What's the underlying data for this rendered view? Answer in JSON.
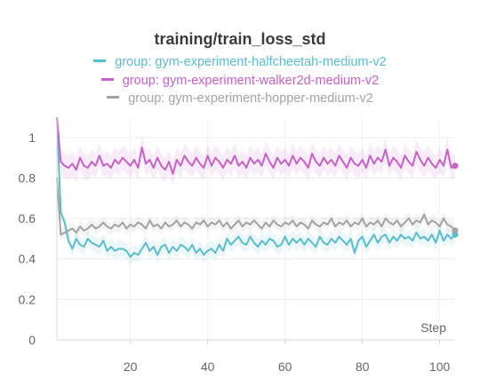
{
  "chart_data": {
    "type": "line",
    "title": "training/train_loss_std",
    "xlabel": "Step",
    "ylabel": "",
    "xlim": [
      1,
      104
    ],
    "ylim": [
      0,
      1.1
    ],
    "xticks": [
      20,
      40,
      60,
      80,
      100
    ],
    "yticks": [
      0,
      0.2,
      0.4,
      0.6,
      0.8,
      1
    ],
    "grid": true,
    "legend_position": "top",
    "series": [
      {
        "name": "group: gym-experiment-halfcheetah-medium-v2",
        "color": "#5bbccc",
        "band_width": 0.04,
        "x": [
          1,
          2,
          3,
          4,
          5,
          6,
          7,
          8,
          9,
          10,
          11,
          12,
          13,
          14,
          15,
          16,
          17,
          18,
          19,
          20,
          21,
          22,
          23,
          24,
          25,
          26,
          27,
          28,
          29,
          30,
          31,
          32,
          33,
          34,
          35,
          36,
          37,
          38,
          39,
          40,
          41,
          42,
          43,
          44,
          45,
          46,
          47,
          48,
          49,
          50,
          51,
          52,
          53,
          54,
          55,
          56,
          57,
          58,
          59,
          60,
          61,
          62,
          63,
          64,
          65,
          66,
          67,
          68,
          69,
          70,
          71,
          72,
          73,
          74,
          75,
          76,
          77,
          78,
          79,
          80,
          81,
          82,
          83,
          84,
          85,
          86,
          87,
          88,
          89,
          90,
          91,
          92,
          93,
          94,
          95,
          96,
          97,
          98,
          99,
          100,
          101,
          102,
          103,
          104
        ],
        "values": [
          1.1,
          0.63,
          0.58,
          0.49,
          0.45,
          0.5,
          0.47,
          0.46,
          0.5,
          0.48,
          0.47,
          0.46,
          0.49,
          0.44,
          0.46,
          0.44,
          0.45,
          0.45,
          0.44,
          0.41,
          0.43,
          0.42,
          0.45,
          0.48,
          0.44,
          0.46,
          0.42,
          0.46,
          0.47,
          0.43,
          0.46,
          0.44,
          0.47,
          0.46,
          0.44,
          0.47,
          0.43,
          0.45,
          0.42,
          0.44,
          0.45,
          0.43,
          0.47,
          0.44,
          0.5,
          0.47,
          0.49,
          0.51,
          0.48,
          0.47,
          0.51,
          0.48,
          0.46,
          0.49,
          0.47,
          0.5,
          0.49,
          0.46,
          0.47,
          0.51,
          0.47,
          0.5,
          0.48,
          0.5,
          0.47,
          0.5,
          0.48,
          0.46,
          0.51,
          0.48,
          0.47,
          0.5,
          0.48,
          0.51,
          0.49,
          0.47,
          0.5,
          0.43,
          0.49,
          0.51,
          0.46,
          0.49,
          0.52,
          0.48,
          0.51,
          0.52,
          0.48,
          0.51,
          0.49,
          0.52,
          0.5,
          0.51,
          0.49,
          0.53,
          0.5,
          0.51,
          0.49,
          0.52,
          0.48,
          0.54,
          0.49,
          0.52,
          0.5,
          0.52
        ]
      },
      {
        "name": "group: gym-experiment-walker2d-medium-v2",
        "color": "#c661c6",
        "band_width": 0.06,
        "x": [
          1,
          2,
          3,
          4,
          5,
          6,
          7,
          8,
          9,
          10,
          11,
          12,
          13,
          14,
          15,
          16,
          17,
          18,
          19,
          20,
          21,
          22,
          23,
          24,
          25,
          26,
          27,
          28,
          29,
          30,
          31,
          32,
          33,
          34,
          35,
          36,
          37,
          38,
          39,
          40,
          41,
          42,
          43,
          44,
          45,
          46,
          47,
          48,
          49,
          50,
          51,
          52,
          53,
          54,
          55,
          56,
          57,
          58,
          59,
          60,
          61,
          62,
          63,
          64,
          65,
          66,
          67,
          68,
          69,
          70,
          71,
          72,
          73,
          74,
          75,
          76,
          77,
          78,
          79,
          80,
          81,
          82,
          83,
          84,
          85,
          86,
          87,
          88,
          89,
          90,
          91,
          92,
          93,
          94,
          95,
          96,
          97,
          98,
          99,
          100,
          101,
          102,
          103,
          104
        ],
        "values": [
          1.1,
          0.88,
          0.86,
          0.85,
          0.87,
          0.84,
          0.9,
          0.86,
          0.85,
          0.88,
          0.86,
          0.91,
          0.86,
          0.87,
          0.85,
          0.89,
          0.87,
          0.9,
          0.88,
          0.86,
          0.89,
          0.85,
          0.95,
          0.87,
          0.89,
          0.85,
          0.9,
          0.86,
          0.84,
          0.88,
          0.82,
          0.89,
          0.86,
          0.91,
          0.88,
          0.86,
          0.9,
          0.87,
          0.85,
          0.91,
          0.86,
          0.9,
          0.88,
          0.85,
          0.89,
          0.87,
          0.91,
          0.86,
          0.88,
          0.85,
          0.9,
          0.87,
          0.89,
          0.86,
          0.92,
          0.88,
          0.85,
          0.9,
          0.87,
          0.89,
          0.86,
          0.91,
          0.87,
          0.9,
          0.88,
          0.85,
          0.92,
          0.88,
          0.86,
          0.9,
          0.87,
          0.89,
          0.86,
          0.91,
          0.88,
          0.85,
          0.9,
          0.87,
          0.86,
          0.89,
          0.85,
          0.91,
          0.87,
          0.9,
          0.88,
          0.94,
          0.86,
          0.9,
          0.88,
          0.85,
          0.91,
          0.88,
          0.86,
          0.93,
          0.89,
          0.86,
          0.9,
          0.87,
          0.85,
          0.89,
          0.86,
          0.94,
          0.85,
          0.86
        ]
      },
      {
        "name": "group: gym-experiment-hopper-medium-v2",
        "color": "#a3a3a3",
        "band_width": 0.03,
        "x": [
          1,
          2,
          3,
          4,
          5,
          6,
          7,
          8,
          9,
          10,
          11,
          12,
          13,
          14,
          15,
          16,
          17,
          18,
          19,
          20,
          21,
          22,
          23,
          24,
          25,
          26,
          27,
          28,
          29,
          30,
          31,
          32,
          33,
          34,
          35,
          36,
          37,
          38,
          39,
          40,
          41,
          42,
          43,
          44,
          45,
          46,
          47,
          48,
          49,
          50,
          51,
          52,
          53,
          54,
          55,
          56,
          57,
          58,
          59,
          60,
          61,
          62,
          63,
          64,
          65,
          66,
          67,
          68,
          69,
          70,
          71,
          72,
          73,
          74,
          75,
          76,
          77,
          78,
          79,
          80,
          81,
          82,
          83,
          84,
          85,
          86,
          87,
          88,
          89,
          90,
          91,
          92,
          93,
          94,
          95,
          96,
          97,
          98,
          99,
          100,
          101,
          102,
          103,
          104
        ],
        "values": [
          0.8,
          0.52,
          0.53,
          0.54,
          0.55,
          0.53,
          0.56,
          0.54,
          0.55,
          0.57,
          0.55,
          0.56,
          0.58,
          0.56,
          0.55,
          0.57,
          0.56,
          0.58,
          0.55,
          0.57,
          0.56,
          0.58,
          0.57,
          0.55,
          0.59,
          0.56,
          0.57,
          0.55,
          0.58,
          0.56,
          0.57,
          0.59,
          0.56,
          0.58,
          0.57,
          0.55,
          0.58,
          0.57,
          0.59,
          0.56,
          0.58,
          0.57,
          0.59,
          0.56,
          0.58,
          0.55,
          0.57,
          0.59,
          0.56,
          0.58,
          0.57,
          0.59,
          0.57,
          0.55,
          0.58,
          0.56,
          0.59,
          0.57,
          0.56,
          0.58,
          0.57,
          0.59,
          0.56,
          0.58,
          0.57,
          0.55,
          0.59,
          0.57,
          0.56,
          0.58,
          0.57,
          0.6,
          0.56,
          0.58,
          0.57,
          0.59,
          0.56,
          0.58,
          0.57,
          0.6,
          0.56,
          0.58,
          0.57,
          0.59,
          0.56,
          0.6,
          0.58,
          0.57,
          0.59,
          0.56,
          0.58,
          0.6,
          0.57,
          0.59,
          0.58,
          0.62,
          0.57,
          0.59,
          0.58,
          0.56,
          0.6,
          0.57,
          0.56,
          0.54
        ]
      }
    ]
  }
}
